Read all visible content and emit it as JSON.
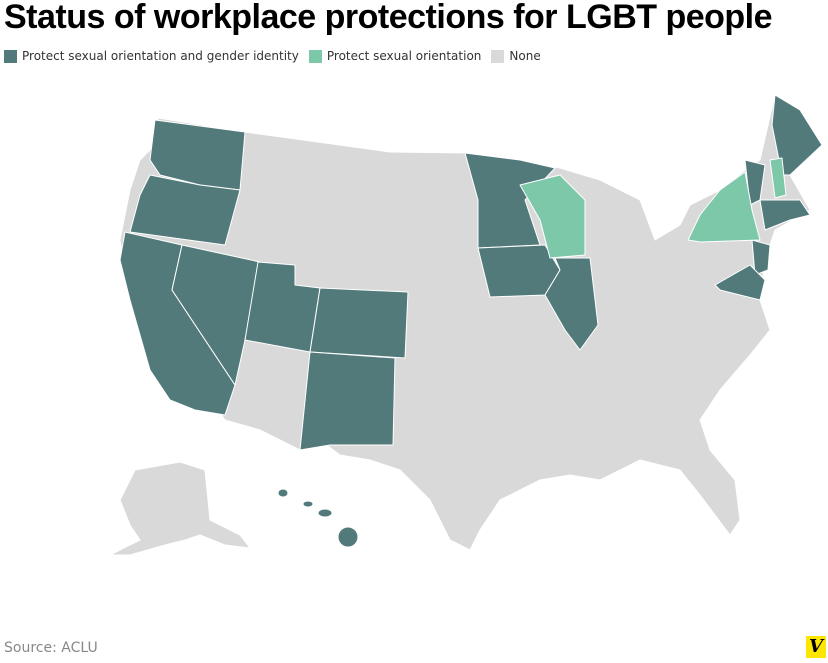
{
  "title": "Status of workplace protections for LGBT people",
  "legend": [
    {
      "label": "Protect sexual orientation and gender identity",
      "color": "#527a7a"
    },
    {
      "label": "Protect sexual orientation",
      "color": "#7ec8aa"
    },
    {
      "label": "None",
      "color": "#d9d9d9"
    }
  ],
  "source": "Source: ACLU",
  "logo": "V"
}
